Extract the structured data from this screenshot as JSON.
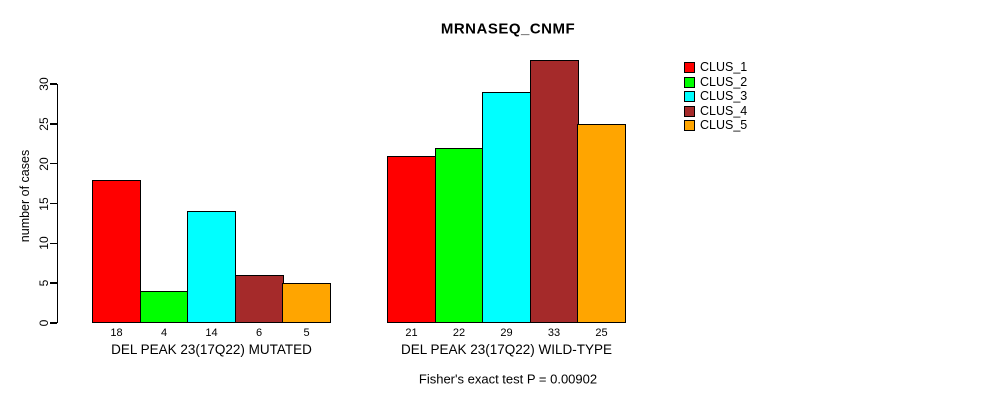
{
  "chart_data": {
    "type": "bar",
    "title": "MRNASEQ_CNMF",
    "ylabel": "number of cases",
    "xlabel": "",
    "ylim": [
      0,
      33
    ],
    "yticks": [
      0,
      5,
      10,
      15,
      20,
      25,
      30
    ],
    "grid": false,
    "bar_value_labels": true,
    "legend_position": "top-right",
    "annotation": "Fisher's exact test P = 0.00902",
    "categories": [
      "DEL PEAK 23(17Q22) MUTATED",
      "DEL PEAK 23(17Q22) WILD-TYPE"
    ],
    "series": [
      {
        "name": "CLUS_1",
        "color": "#ff0000",
        "values": [
          18,
          21
        ]
      },
      {
        "name": "CLUS_2",
        "color": "#00ff00",
        "values": [
          4,
          22
        ]
      },
      {
        "name": "CLUS_3",
        "color": "#00ffff",
        "values": [
          14,
          29
        ]
      },
      {
        "name": "CLUS_4",
        "color": "#a52a2a",
        "values": [
          6,
          33
        ]
      },
      {
        "name": "CLUS_5",
        "color": "#ffa500",
        "values": [
          5,
          25
        ]
      }
    ]
  }
}
